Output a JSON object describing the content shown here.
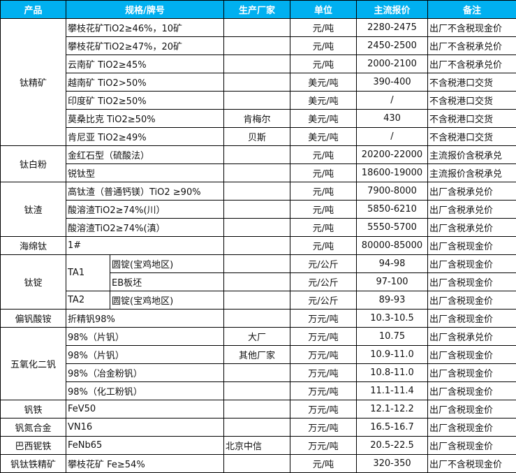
{
  "header": {
    "product": "产品",
    "spec": "规格/牌号",
    "maker": "生产厂家",
    "unit": "单位",
    "price": "主流报价",
    "note": "备注"
  },
  "header_color": "#00b0f0",
  "groups": [
    {
      "product": "钛精矿",
      "rows": [
        {
          "spec": "攀枝花矿TiO2≥46%，10矿",
          "maker": "",
          "unit": "元/吨",
          "price": "2280-2475",
          "note": "出厂不含税现金价"
        },
        {
          "spec": "攀枝花矿TiO2≥47%，20矿",
          "maker": "",
          "unit": "元/吨",
          "price": "2450-2500",
          "note": "出厂不含税承兑价"
        },
        {
          "spec": "云南矿 TiO2≥45%",
          "maker": "",
          "unit": "元/吨",
          "price": "2000-2100",
          "note": "出厂不含税承兑价"
        },
        {
          "spec": "越南矿 TiO2>50%",
          "maker": "",
          "unit": "美元/吨",
          "price": "390-400",
          "note": "不含税港口交货"
        },
        {
          "spec": "印度矿 TiO2≥50%",
          "maker": "",
          "unit": "美元/吨",
          "price": "/",
          "note": "不含税港口交货"
        },
        {
          "spec": "莫桑比克 TiO2≥50%",
          "maker": "肯梅尔",
          "unit": "美元/吨",
          "price": "430",
          "note": "不含税港口交货"
        },
        {
          "spec": "肯尼亚 TiO2≥49%",
          "maker": "贝斯",
          "unit": "美元/吨",
          "price": "/",
          "note": "不含税港口交货"
        }
      ]
    },
    {
      "product": "钛白粉",
      "rows": [
        {
          "spec": "金红石型（硫酸法）",
          "maker": "",
          "unit": "元/吨",
          "price": "20200-22000",
          "note": "主流报价含税承兑"
        },
        {
          "spec": "锐钛型",
          "maker": "",
          "unit": "元/吨",
          "price": "18600-19000",
          "note": "主流报价含税承兑"
        }
      ]
    },
    {
      "product": "钛渣",
      "rows": [
        {
          "spec": "高钛渣（普通钙镁）TiO2 ≥90%",
          "maker": "",
          "unit": "元/吨",
          "price": "7900-8000",
          "note": "出厂含税承兑价"
        },
        {
          "spec": "酸溶渣TiO2≥74%(川）",
          "maker": "",
          "unit": "元/吨",
          "price": "5850-6210",
          "note": "出厂含税承兑价"
        },
        {
          "spec": "酸溶渣TiO2≥74%(滇）",
          "maker": "",
          "unit": "元/吨",
          "price": "5550-5700",
          "note": "出厂含税承兑价"
        }
      ]
    },
    {
      "product": "海绵钛",
      "rows": [
        {
          "spec": "1#",
          "maker": "",
          "unit": "元/吨",
          "price": "80000-85000",
          "note": "出厂含税现金价"
        }
      ]
    },
    {
      "product": "钛锭",
      "rows": [
        {
          "grade": "TA1",
          "grade_span": 2,
          "form": "圆锭(宝鸡地区)",
          "maker": "",
          "unit": "元/公斤",
          "price": "94-98",
          "note": "出厂含税现金价"
        },
        {
          "form": "EB板坯",
          "maker": "",
          "unit": "元/公斤",
          "price": "97-100",
          "note": "出厂含税现金价"
        },
        {
          "grade": "TA2",
          "grade_span": 1,
          "form": "圆锭(宝鸡地区)",
          "maker": "",
          "unit": "元/公斤",
          "price": "89-93",
          "note": "出厂含税现金价"
        }
      ]
    },
    {
      "product": "偏钒酸铵",
      "rows": [
        {
          "spec": "折精钒98%",
          "maker": "",
          "unit": "万元/吨",
          "price": "10.3-10.5",
          "note": "出厂含税现金价"
        }
      ]
    },
    {
      "product": "五氧化二钒",
      "rows": [
        {
          "spec": "98%（片钒）",
          "maker": "大厂",
          "unit": "万元/吨",
          "price": "10.75",
          "note": "出厂含税承兑价"
        },
        {
          "spec": "98%（片钒）",
          "maker": "其他厂家",
          "unit": "万元/吨",
          "price": "10.9-11.0",
          "note": "出厂含税现金价"
        },
        {
          "spec": "98%（冶金粉钒）",
          "maker": "",
          "unit": "万元/吨",
          "price": "10.8-11.0",
          "note": "出厂含税现金价"
        },
        {
          "spec": "98%（化工粉钒）",
          "maker": "",
          "unit": "万元/吨",
          "price": "11.1-11.4",
          "note": "出厂含税现金价"
        }
      ]
    },
    {
      "product": "钒铁",
      "rows": [
        {
          "spec": "FeV50",
          "maker": "",
          "unit": "万元/吨",
          "price": "12.1-12.2",
          "note": "出厂含税现金价"
        }
      ]
    },
    {
      "product": "钒氮合金",
      "rows": [
        {
          "spec": "VN16",
          "maker": "",
          "unit": "万元/吨",
          "price": "16.5-16.7",
          "note": "出厂含税现金价"
        }
      ]
    },
    {
      "product": "巴西铌铁",
      "rows": [
        {
          "spec": "FeNb65",
          "maker": "北京中信",
          "maker_align": "left",
          "unit": "万元/吨",
          "price": "20.5-22.5",
          "note": "出厂含税现金价"
        }
      ]
    },
    {
      "product": "钒钛铁精矿",
      "rows": [
        {
          "spec": "攀枝花矿 Fe≥54%",
          "maker": "",
          "unit": "元/吨",
          "price": "320-350",
          "note": "出厂不含税现金价"
        }
      ]
    }
  ]
}
